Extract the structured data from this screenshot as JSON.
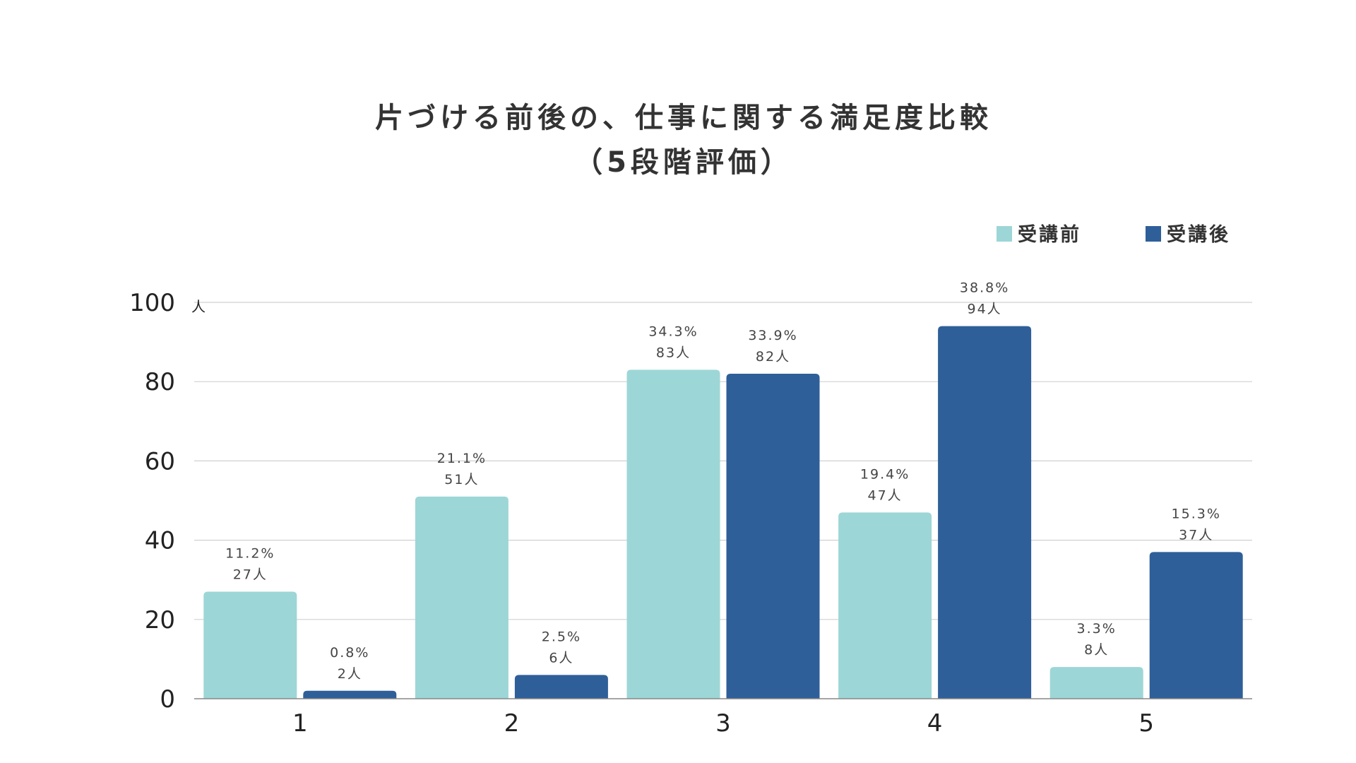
{
  "chart_data": {
    "type": "bar",
    "title_lines": [
      "片づける前後の、仕事に関する満足度比較",
      "（5段階評価）"
    ],
    "categories": [
      "1",
      "2",
      "3",
      "4",
      "5"
    ],
    "series": [
      {
        "name": "受講前",
        "color": "#9dd6d6",
        "values": [
          27,
          51,
          83,
          47,
          8
        ],
        "percents": [
          "11.2%",
          "21.1%",
          "34.3%",
          "19.4%",
          "3.3%"
        ],
        "count_labels": [
          "27人",
          "51人",
          "83人",
          "47人",
          "8人"
        ]
      },
      {
        "name": "受講後",
        "color": "#2e5f99",
        "values": [
          2,
          6,
          82,
          94,
          37
        ],
        "percents": [
          "0.8%",
          "2.5%",
          "33.9%",
          "38.8%",
          "15.3%"
        ],
        "count_labels": [
          "2人",
          "6人",
          "82人",
          "94人",
          "37人"
        ]
      }
    ],
    "y_ticks": [
      "0",
      "20",
      "40",
      "60",
      "80",
      "100"
    ],
    "y_unit": "人",
    "ylim": [
      0,
      100
    ],
    "grid": true,
    "legend_position": "top-right"
  }
}
